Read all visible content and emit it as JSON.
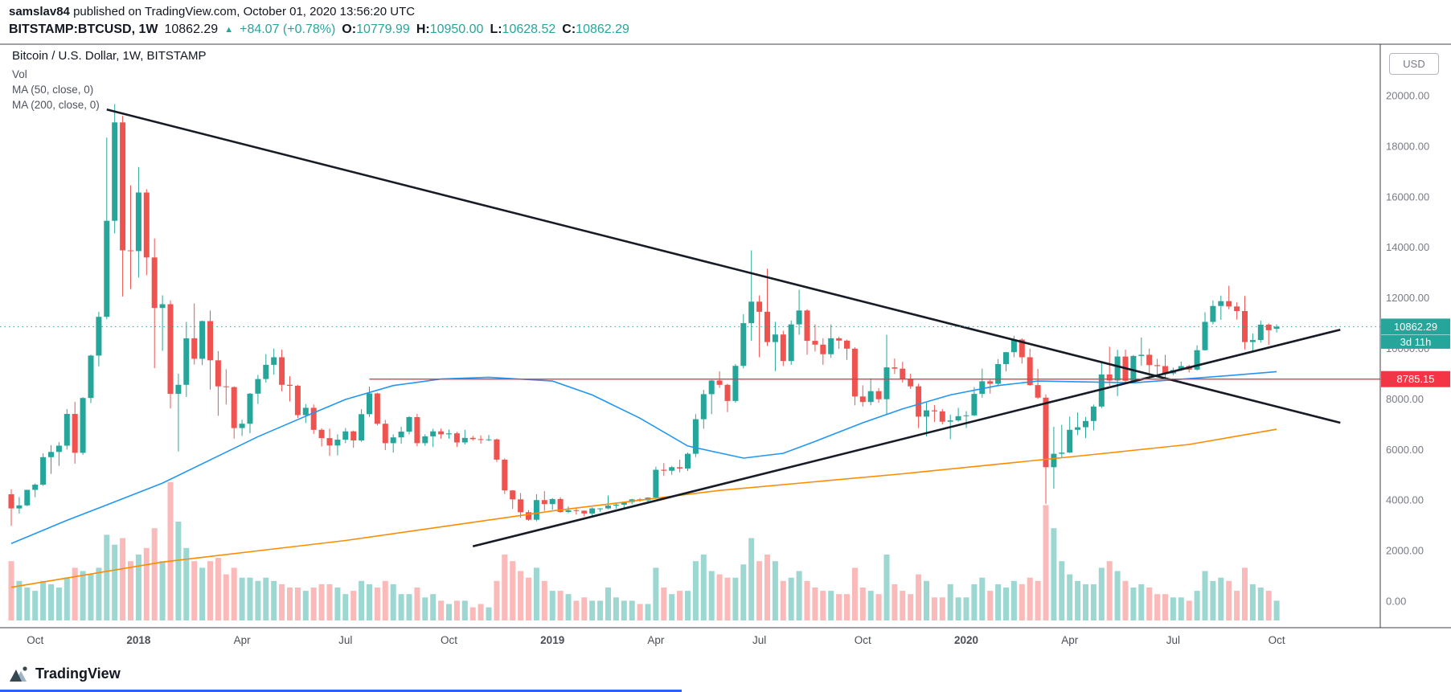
{
  "header": {
    "author": "samslav84",
    "published": " published on TradingView.com, October 01, 2020 13:56:20 UTC",
    "symbol_line": {
      "symbol": "BITSTAMP:BTCUSD, 1W",
      "last": "10862.29",
      "arrow": "▲",
      "change": "+84.07 (+0.78%)",
      "o_label": "O:",
      "o": "10779.99",
      "h_label": "H:",
      "h": "10950.00",
      "l_label": "L:",
      "l": "10628.52",
      "c_label": "C:",
      "c": "10862.29"
    }
  },
  "legend": {
    "title": "Bitcoin / U.S. Dollar, 1W, BITSTAMP",
    "vol": "Vol",
    "ma50": "MA (50, close, 0)",
    "ma200": "MA (200, close, 0)"
  },
  "axis": {
    "currency_button": "USD",
    "price_ticks": [
      20000,
      18000,
      16000,
      14000,
      12000,
      10000,
      8000,
      6000,
      4000,
      2000,
      0
    ],
    "time_labels": [
      {
        "i": 3,
        "t": "Oct",
        "bold": false
      },
      {
        "i": 16,
        "t": "2018",
        "bold": true
      },
      {
        "i": 29,
        "t": "Apr",
        "bold": false
      },
      {
        "i": 42,
        "t": "Jul",
        "bold": false
      },
      {
        "i": 55,
        "t": "Oct",
        "bold": false
      },
      {
        "i": 68,
        "t": "2019",
        "bold": true
      },
      {
        "i": 81,
        "t": "Apr",
        "bold": false
      },
      {
        "i": 94,
        "t": "Jul",
        "bold": false
      },
      {
        "i": 107,
        "t": "Oct",
        "bold": false
      },
      {
        "i": 120,
        "t": "2020",
        "bold": true
      },
      {
        "i": 133,
        "t": "Apr",
        "bold": false
      },
      {
        "i": 146,
        "t": "Jul",
        "bold": false
      },
      {
        "i": 159,
        "t": "Oct",
        "bold": false
      }
    ],
    "last_price_label": "10862.29",
    "countdown_label": "3d 11h",
    "hline_label": "8785.15"
  },
  "footer": {
    "logo_text": "TradingView"
  },
  "chart_data": {
    "type": "candlestick",
    "title": "Bitcoin / U.S. Dollar, 1W, BITSTAMP",
    "symbol": "BITSTAMP:BTCUSD",
    "timeframe": "1W",
    "start_week": "2017-09-11",
    "ylim": [
      0,
      21500
    ],
    "grid": false,
    "colors": {
      "up": "#26a69a",
      "down": "#ef5350",
      "vol_up": "rgba(38,166,154,0.45)",
      "vol_down": "rgba(239,83,80,0.40)"
    },
    "ohlcv_columns": [
      "open",
      "high",
      "low",
      "close",
      "volume_relative"
    ],
    "ohlcv": [
      [
        4230,
        4430,
        2980,
        3670,
        180
      ],
      [
        3670,
        4120,
        3470,
        3790,
        120
      ],
      [
        3790,
        4406,
        3758,
        4404,
        100
      ],
      [
        4404,
        4658,
        4110,
        4610,
        90
      ],
      [
        4610,
        5846,
        4564,
        5697,
        120
      ],
      [
        5697,
        6171,
        5037,
        5904,
        110
      ],
      [
        5904,
        6288,
        5356,
        6153,
        100
      ],
      [
        6153,
        7598,
        6000,
        7407,
        130
      ],
      [
        7407,
        7888,
        5440,
        5870,
        160
      ],
      [
        5870,
        8071,
        5789,
        8038,
        150
      ],
      [
        8038,
        9750,
        7839,
        9718,
        140
      ],
      [
        9718,
        11450,
        9290,
        11250,
        160
      ],
      [
        11250,
        18340,
        11150,
        15050,
        260
      ],
      [
        15050,
        19666,
        14550,
        18940,
        230
      ],
      [
        18940,
        19200,
        12050,
        13880,
        250
      ],
      [
        13880,
        16450,
        12350,
        13850,
        180
      ],
      [
        13850,
        17176,
        12800,
        16170,
        200
      ],
      [
        16170,
        16300,
        12900,
        13600,
        220
      ],
      [
        13600,
        14350,
        9222,
        11600,
        280
      ],
      [
        11600,
        12100,
        9900,
        11750,
        180
      ],
      [
        11750,
        11900,
        7625,
        8200,
        420
      ],
      [
        8200,
        9000,
        5920,
        8560,
        300
      ],
      [
        8560,
        11050,
        8080,
        10400,
        220
      ],
      [
        10400,
        11780,
        9360,
        9590,
        180
      ],
      [
        9590,
        11100,
        9340,
        11080,
        160
      ],
      [
        11080,
        11500,
        8370,
        9530,
        180
      ],
      [
        9530,
        9896,
        7335,
        8500,
        190
      ],
      [
        8500,
        9177,
        7780,
        8470,
        140
      ],
      [
        8470,
        8500,
        6430,
        6850,
        160
      ],
      [
        6850,
        7180,
        6535,
        7020,
        130
      ],
      [
        7020,
        8235,
        6647,
        8210,
        130
      ],
      [
        8210,
        8950,
        7805,
        8790,
        120
      ],
      [
        8790,
        9770,
        8650,
        9350,
        130
      ],
      [
        9350,
        9995,
        8965,
        9650,
        120
      ],
      [
        9650,
        9950,
        8300,
        8560,
        110
      ],
      [
        8560,
        8900,
        7900,
        8520,
        100
      ],
      [
        8520,
        8560,
        7250,
        7360,
        100
      ],
      [
        7360,
        7800,
        7050,
        7650,
        90
      ],
      [
        7650,
        7780,
        6620,
        6780,
        100
      ],
      [
        6780,
        6840,
        6120,
        6450,
        110
      ],
      [
        6450,
        6830,
        5750,
        6160,
        110
      ],
      [
        6160,
        6600,
        5770,
        6390,
        100
      ],
      [
        6390,
        6850,
        6250,
        6720,
        80
      ],
      [
        6720,
        6750,
        6070,
        6360,
        90
      ],
      [
        6360,
        7600,
        6310,
        7400,
        120
      ],
      [
        7400,
        8490,
        7290,
        8220,
        110
      ],
      [
        8220,
        8245,
        6950,
        7020,
        100
      ],
      [
        7020,
        7170,
        5980,
        6250,
        120
      ],
      [
        6250,
        6600,
        5880,
        6480,
        110
      ],
      [
        6480,
        6900,
        6230,
        6710,
        80
      ],
      [
        6710,
        7320,
        6600,
        7280,
        80
      ],
      [
        7280,
        7410,
        6130,
        6250,
        100
      ],
      [
        6250,
        6600,
        6150,
        6520,
        70
      ],
      [
        6520,
        6820,
        6100,
        6720,
        80
      ],
      [
        6720,
        6830,
        6430,
        6600,
        60
      ],
      [
        6600,
        6790,
        6430,
        6640,
        50
      ],
      [
        6640,
        6700,
        6100,
        6280,
        60
      ],
      [
        6280,
        6780,
        6200,
        6460,
        60
      ],
      [
        6460,
        6540,
        6350,
        6410,
        40
      ],
      [
        6410,
        6560,
        6230,
        6390,
        50
      ],
      [
        6390,
        6580,
        6330,
        6400,
        40
      ],
      [
        6400,
        6430,
        5510,
        5600,
        120
      ],
      [
        5600,
        5650,
        4237,
        4380,
        200
      ],
      [
        4380,
        4400,
        3650,
        4030,
        180
      ],
      [
        4030,
        4280,
        3300,
        3520,
        150
      ],
      [
        3520,
        3600,
        3180,
        3220,
        130
      ],
      [
        3220,
        4230,
        3160,
        4000,
        160
      ],
      [
        4000,
        4350,
        3570,
        3840,
        120
      ],
      [
        3840,
        4080,
        3620,
        4040,
        90
      ],
      [
        4040,
        4110,
        3500,
        3530,
        90
      ],
      [
        3530,
        3750,
        3480,
        3600,
        80
      ],
      [
        3600,
        3650,
        3425,
        3580,
        60
      ],
      [
        3580,
        3590,
        3350,
        3470,
        70
      ],
      [
        3470,
        3710,
        3330,
        3670,
        60
      ],
      [
        3670,
        3680,
        3540,
        3670,
        60
      ],
      [
        3670,
        4180,
        3640,
        3780,
        100
      ],
      [
        3780,
        3890,
        3660,
        3820,
        70
      ],
      [
        3820,
        3940,
        3700,
        3920,
        60
      ],
      [
        3920,
        4050,
        3830,
        4030,
        60
      ],
      [
        4030,
        4080,
        3940,
        3990,
        50
      ],
      [
        3990,
        4110,
        3870,
        4100,
        50
      ],
      [
        4100,
        5320,
        4080,
        5200,
        160
      ],
      [
        5200,
        5460,
        4950,
        5160,
        100
      ],
      [
        5160,
        5350,
        5000,
        5300,
        80
      ],
      [
        5300,
        5600,
        5100,
        5250,
        90
      ],
      [
        5250,
        5880,
        5150,
        5830,
        90
      ],
      [
        5830,
        7400,
        5700,
        7200,
        180
      ],
      [
        7200,
        8360,
        6820,
        8190,
        200
      ],
      [
        8190,
        8750,
        7400,
        8730,
        150
      ],
      [
        8730,
        9090,
        8440,
        8560,
        140
      ],
      [
        8560,
        8600,
        7480,
        7920,
        130
      ],
      [
        7920,
        9380,
        7850,
        9310,
        130
      ],
      [
        9310,
        11350,
        9210,
        11000,
        170
      ],
      [
        11000,
        13880,
        10300,
        11850,
        250
      ],
      [
        11850,
        12100,
        9650,
        11450,
        180
      ],
      [
        11450,
        13150,
        10100,
        10250,
        200
      ],
      [
        10250,
        11050,
        9100,
        10550,
        180
      ],
      [
        10550,
        10700,
        9300,
        9500,
        120
      ],
      [
        9500,
        11100,
        9350,
        10950,
        130
      ],
      [
        10950,
        12320,
        10540,
        11500,
        150
      ],
      [
        11500,
        11550,
        9750,
        10300,
        120
      ],
      [
        10300,
        10950,
        9880,
        10150,
        100
      ],
      [
        10150,
        10400,
        9350,
        9770,
        90
      ],
      [
        9770,
        10950,
        9630,
        10400,
        90
      ],
      [
        10400,
        10460,
        9980,
        10310,
        80
      ],
      [
        10310,
        10350,
        9550,
        9990,
        80
      ],
      [
        9990,
        10050,
        7750,
        8100,
        160
      ],
      [
        8100,
        8540,
        7700,
        7880,
        100
      ],
      [
        7880,
        8820,
        7750,
        8310,
        90
      ],
      [
        8310,
        8430,
        7850,
        7990,
        80
      ],
      [
        7990,
        10540,
        7360,
        9250,
        200
      ],
      [
        9250,
        9600,
        8990,
        9200,
        110
      ],
      [
        9200,
        9470,
        8650,
        8800,
        90
      ],
      [
        8800,
        9000,
        8400,
        8500,
        80
      ],
      [
        8500,
        8600,
        6850,
        7300,
        140
      ],
      [
        7300,
        7850,
        6520,
        7550,
        120
      ],
      [
        7550,
        7760,
        7090,
        7510,
        70
      ],
      [
        7510,
        7600,
        7000,
        7100,
        70
      ],
      [
        7100,
        7380,
        6410,
        7150,
        110
      ],
      [
        7150,
        7650,
        7100,
        7320,
        70
      ],
      [
        7320,
        7520,
        6850,
        7350,
        70
      ],
      [
        7350,
        8470,
        7320,
        8200,
        110
      ],
      [
        8200,
        9200,
        8050,
        8700,
        130
      ],
      [
        8700,
        8760,
        8210,
        8600,
        90
      ],
      [
        8600,
        9580,
        8540,
        9380,
        110
      ],
      [
        9380,
        9860,
        9090,
        9850,
        100
      ],
      [
        9850,
        10500,
        9650,
        10350,
        120
      ],
      [
        10350,
        10400,
        9400,
        9650,
        110
      ],
      [
        9650,
        9990,
        8520,
        8550,
        130
      ],
      [
        8550,
        9190,
        8000,
        8050,
        120
      ],
      [
        8050,
        8180,
        3850,
        5300,
        350
      ],
      [
        5300,
        6900,
        4450,
        5830,
        280
      ],
      [
        5830,
        6980,
        5670,
        5880,
        180
      ],
      [
        5880,
        7300,
        5860,
        6780,
        140
      ],
      [
        6780,
        7470,
        6570,
        6880,
        120
      ],
      [
        6880,
        7290,
        6450,
        7130,
        110
      ],
      [
        7130,
        7780,
        6760,
        7700,
        110
      ],
      [
        7700,
        9480,
        7640,
        8970,
        160
      ],
      [
        8970,
        10070,
        8520,
        8730,
        180
      ],
      [
        8730,
        9950,
        8110,
        9680,
        150
      ],
      [
        9680,
        9950,
        8640,
        8720,
        120
      ],
      [
        8720,
        9740,
        8660,
        9700,
        100
      ],
      [
        9700,
        10430,
        9320,
        9750,
        110
      ],
      [
        9750,
        9990,
        8900,
        9340,
        100
      ],
      [
        9340,
        9590,
        8910,
        9300,
        80
      ],
      [
        9300,
        9750,
        8830,
        9010,
        80
      ],
      [
        9010,
        9240,
        8940,
        9140,
        70
      ],
      [
        9140,
        9480,
        9110,
        9300,
        70
      ],
      [
        9300,
        9350,
        9050,
        9160,
        60
      ],
      [
        9160,
        10120,
        9120,
        9930,
        90
      ],
      [
        9930,
        11430,
        9910,
        11050,
        150
      ],
      [
        11050,
        11900,
        10950,
        11680,
        120
      ],
      [
        11680,
        12090,
        11125,
        11870,
        130
      ],
      [
        11870,
        12480,
        11550,
        11660,
        120
      ],
      [
        11660,
        11820,
        11140,
        11480,
        90
      ],
      [
        11480,
        12070,
        9960,
        10250,
        160
      ],
      [
        10250,
        10590,
        9880,
        10330,
        110
      ],
      [
        10330,
        11100,
        10230,
        10940,
        100
      ],
      [
        10940,
        10990,
        10140,
        10720,
        90
      ],
      [
        10779.99,
        10950,
        10628.52,
        10862.29,
        60
      ]
    ],
    "overlays": {
      "ma50": {
        "color": "#2196f3",
        "points": [
          [
            0,
            2280
          ],
          [
            7,
            3200
          ],
          [
            13,
            3930
          ],
          [
            19,
            4670
          ],
          [
            25,
            5590
          ],
          [
            31,
            6510
          ],
          [
            37,
            7320
          ],
          [
            42,
            7980
          ],
          [
            48,
            8530
          ],
          [
            54,
            8790
          ],
          [
            60,
            8860
          ],
          [
            68,
            8710
          ],
          [
            73,
            8160
          ],
          [
            79,
            7240
          ],
          [
            85,
            6140
          ],
          [
            92,
            5660
          ],
          [
            97,
            5850
          ],
          [
            101,
            6320
          ],
          [
            107,
            7060
          ],
          [
            112,
            7610
          ],
          [
            118,
            8160
          ],
          [
            124,
            8530
          ],
          [
            129,
            8710
          ],
          [
            141,
            8640
          ],
          [
            152,
            8900
          ],
          [
            159,
            9080
          ]
        ]
      },
      "ma200": {
        "color": "#fb8c00",
        "points": [
          [
            0,
            550
          ],
          [
            19,
            1550
          ],
          [
            42,
            2400
          ],
          [
            68,
            3570
          ],
          [
            89,
            4380
          ],
          [
            112,
            5040
          ],
          [
            135,
            5770
          ],
          [
            148,
            6200
          ],
          [
            159,
            6800
          ]
        ]
      },
      "trendlines": [
        {
          "from": [
            12,
            19450
          ],
          "to": [
            167,
            7060
          ]
        },
        {
          "from": [
            58,
            2170
          ],
          "to": [
            167,
            10740
          ]
        }
      ],
      "hline": {
        "price": 8785.15,
        "from_index": 45,
        "color": "#f23645"
      },
      "last_price": 10862.29
    }
  }
}
